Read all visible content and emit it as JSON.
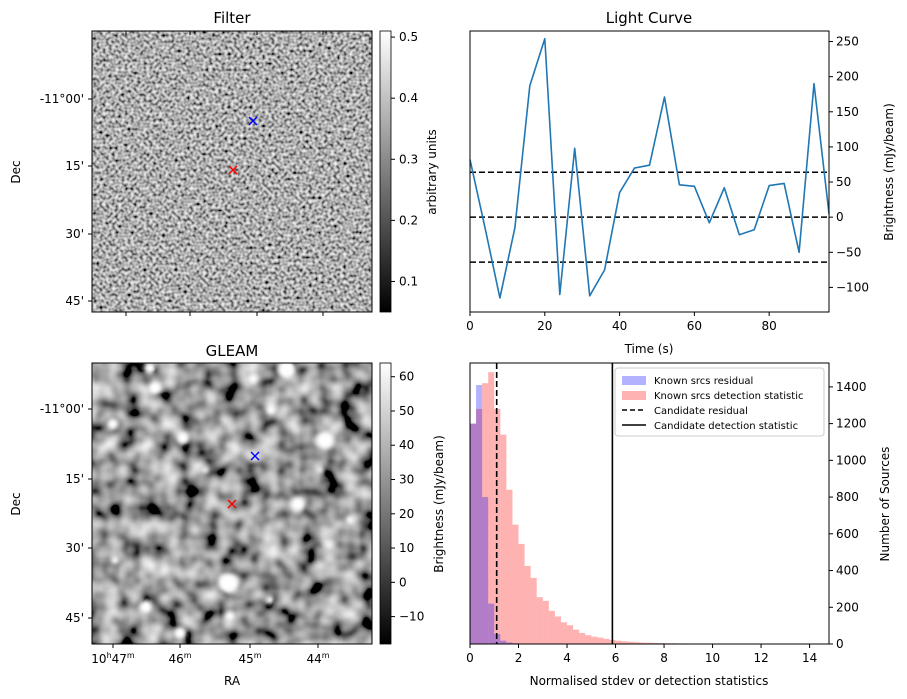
{
  "chart_data": [
    {
      "type": "heatmap",
      "title": "Filter",
      "xlabel": "",
      "ylabel": "Dec",
      "y_ticks": [
        "-11°00'",
        "15'",
        "30'",
        "45'"
      ],
      "colorbar": {
        "label": "arbitrary units",
        "range": [
          0.05,
          0.51
        ],
        "ticks": [
          0.1,
          0.2,
          0.3,
          0.4,
          0.5
        ],
        "colormap": "gray"
      },
      "markers": [
        {
          "name": "candidate",
          "symbol": "x",
          "color": "#0000ff"
        },
        {
          "name": "reference",
          "symbol": "x",
          "color": "#ff0000"
        }
      ]
    },
    {
      "type": "line",
      "title": "Light Curve",
      "xlabel": "Time (s)",
      "ylabel": "Brightness (mJy/beam)",
      "xlim": [
        0,
        96
      ],
      "ylim": [
        -135,
        265
      ],
      "x_ticks": [
        0,
        20,
        40,
        60,
        80
      ],
      "y_ticks": [
        -100,
        -50,
        0,
        50,
        100,
        150,
        200,
        250
      ],
      "y_axis_side": "right",
      "series": [
        {
          "color": "#1f77b4",
          "x": [
            0,
            4,
            8,
            12,
            16,
            20,
            24,
            28,
            32,
            36,
            40,
            44,
            48,
            52,
            56,
            60,
            64,
            68,
            72,
            76,
            80,
            84,
            88,
            92,
            96
          ],
          "values": [
            82,
            -15,
            -115,
            -15,
            187,
            254,
            -110,
            98,
            -112,
            -75,
            35,
            70,
            74,
            171,
            46,
            44,
            -8,
            42,
            -25,
            -18,
            45,
            48,
            -50,
            190,
            5
          ]
        }
      ],
      "hlines": [
        {
          "y": 64,
          "style": "dashed",
          "color": "#000000"
        },
        {
          "y": 0,
          "style": "dashed",
          "color": "#000000"
        },
        {
          "y": -64,
          "style": "dashed",
          "color": "#000000"
        }
      ]
    },
    {
      "type": "heatmap",
      "title": "GLEAM",
      "xlabel": "RA",
      "ylabel": "Dec",
      "x_ticks": [
        "10h47m",
        "46m",
        "45m",
        "44m"
      ],
      "y_ticks": [
        "-11°00'",
        "15'",
        "30'",
        "45'"
      ],
      "colorbar": {
        "label": "Brightness (mJy/beam)",
        "range": [
          -18,
          64
        ],
        "ticks": [
          -10,
          0,
          10,
          20,
          30,
          40,
          50,
          60
        ],
        "colormap": "gray"
      },
      "markers": [
        {
          "name": "candidate",
          "symbol": "x",
          "color": "#0000ff"
        },
        {
          "name": "reference",
          "symbol": "x",
          "color": "#ff0000"
        }
      ]
    },
    {
      "type": "bar",
      "title": "",
      "xlabel": "Normalised stdev or detection statistics",
      "ylabel": "Number of Sources",
      "xlim": [
        0,
        14.8
      ],
      "ylim": [
        0,
        1530
      ],
      "x_ticks": [
        0,
        2,
        4,
        6,
        8,
        10,
        12,
        14
      ],
      "y_ticks": [
        0,
        200,
        400,
        600,
        800,
        1000,
        1200,
        1400
      ],
      "y_axis_side": "right",
      "legend_position": "top-right",
      "bin_width": 0.25,
      "series": [
        {
          "name": "Known srcs residual",
          "color": "#0000ff",
          "alpha": 0.3,
          "bin_start": 0,
          "values": [
            1200,
            1410,
            800,
            220,
            55,
            18,
            8,
            4,
            2,
            1,
            1,
            0
          ]
        },
        {
          "name": "Known srcs detection statistic",
          "color": "#ff0000",
          "alpha": 0.3,
          "bin_start": 0,
          "values": [
            1200,
            1280,
            1420,
            1480,
            1280,
            1140,
            840,
            650,
            545,
            425,
            360,
            255,
            235,
            180,
            150,
            118,
            102,
            78,
            60,
            48,
            40,
            35,
            28,
            22,
            18,
            15,
            12,
            10,
            8,
            7,
            6,
            5,
            4,
            4,
            3,
            3,
            2,
            2,
            2,
            2,
            2,
            1,
            1,
            1,
            1,
            1,
            1,
            1,
            1,
            1,
            1,
            0,
            0,
            0,
            0,
            0,
            1
          ]
        }
      ],
      "vlines": [
        {
          "name": "Candidate residual",
          "x": 1.1,
          "style": "dashed",
          "color": "#000000"
        },
        {
          "name": "Candidate detection statistic",
          "x": 5.87,
          "style": "solid",
          "color": "#000000"
        }
      ]
    }
  ]
}
